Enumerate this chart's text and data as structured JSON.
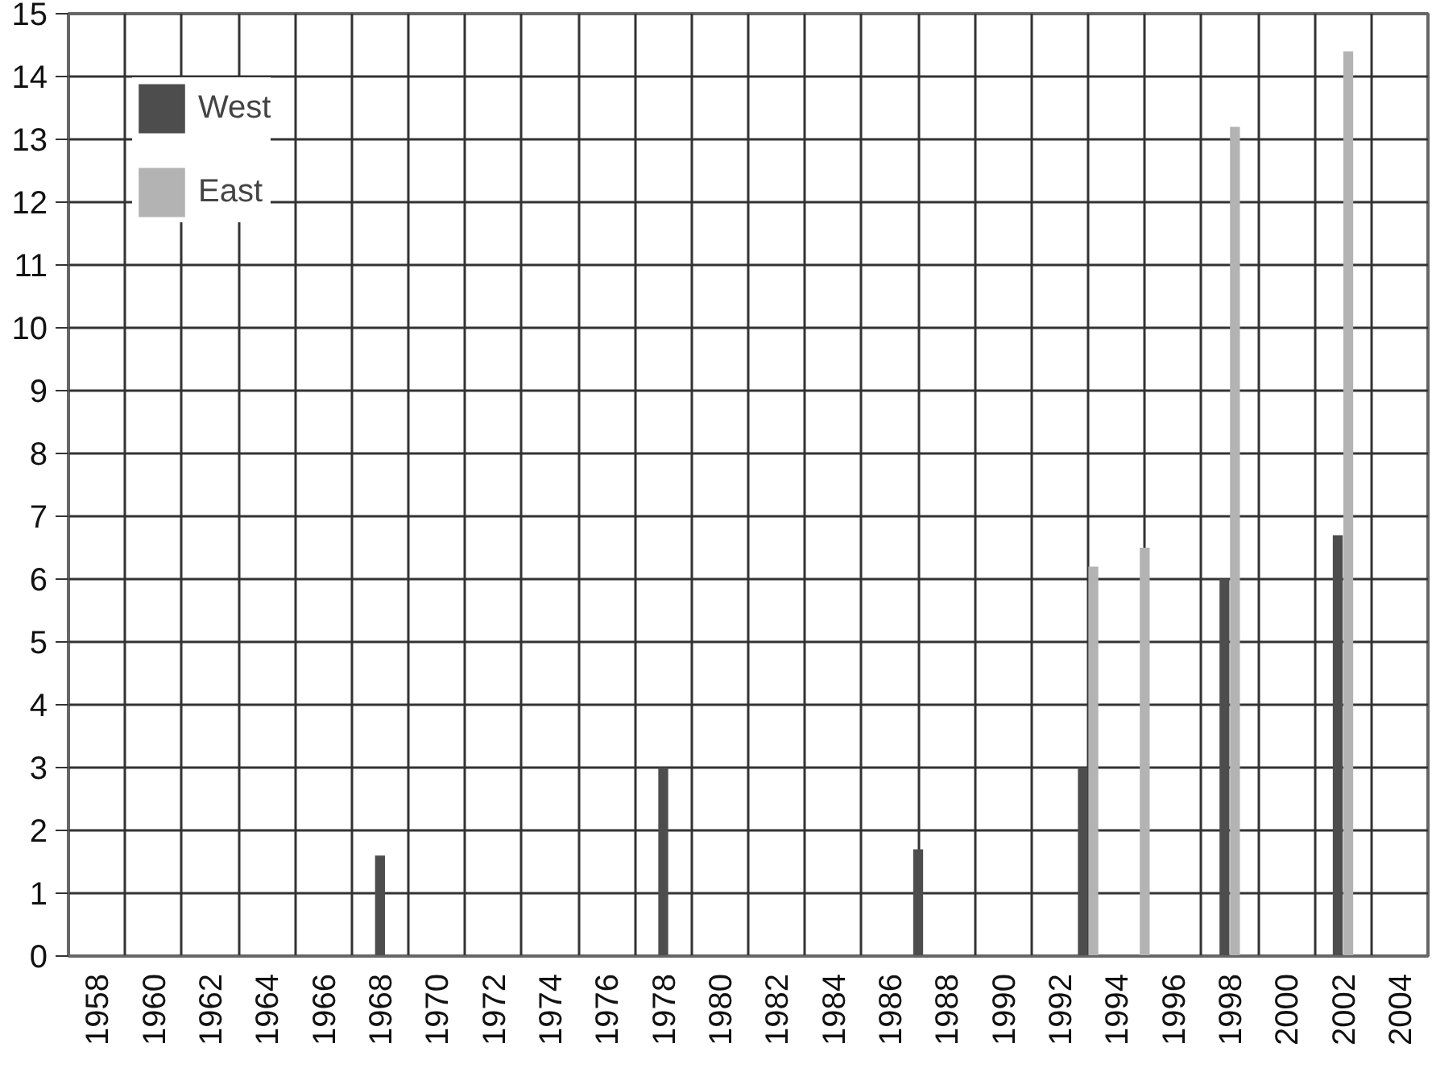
{
  "chart_data": {
    "type": "bar",
    "x": [
      1968,
      1978,
      1987,
      1993,
      1995,
      1998,
      2002
    ],
    "series": [
      {
        "name": "West",
        "color": "#4d4d4d",
        "values": [
          1.6,
          3.0,
          1.7,
          3.0,
          null,
          6.0,
          6.7
        ]
      },
      {
        "name": "East",
        "color": "#b3b3b3",
        "values": [
          null,
          null,
          null,
          6.2,
          6.5,
          13.2,
          14.4
        ]
      }
    ],
    "xlim": [
      1957,
      2005
    ],
    "xticks": [
      {
        "value": 1957,
        "label": null
      },
      1958,
      {
        "value": 1959,
        "label": null
      },
      1960,
      {
        "value": 1961,
        "label": null
      },
      1962,
      {
        "value": 1963,
        "label": null
      },
      1964,
      {
        "value": 1965,
        "label": null
      },
      1966,
      {
        "value": 1967,
        "label": null
      },
      1968,
      {
        "value": 1969,
        "label": null
      },
      1970,
      {
        "value": 1971,
        "label": null
      },
      1972,
      {
        "value": 1973,
        "label": null
      },
      1974,
      {
        "value": 1975,
        "label": null
      },
      1976,
      {
        "value": 1977,
        "label": null
      },
      1978,
      {
        "value": 1979,
        "label": null
      },
      1980,
      {
        "value": 1981,
        "label": null
      },
      1982,
      {
        "value": 1983,
        "label": null
      },
      1984,
      {
        "value": 1985,
        "label": null
      },
      1986,
      {
        "value": 1987,
        "label": null
      },
      1988,
      {
        "value": 1989,
        "label": null
      },
      1990,
      {
        "value": 1991,
        "label": null
      },
      1992,
      {
        "value": 1993,
        "label": null
      },
      1994,
      {
        "value": 1995,
        "label": null
      },
      1996,
      {
        "value": 1997,
        "label": null
      },
      1998,
      {
        "value": 1999,
        "label": null
      },
      2000,
      {
        "value": 2001,
        "label": null
      },
      2002,
      {
        "value": 2003,
        "label": null
      },
      2004,
      {
        "value": 2005,
        "label": null
      }
    ],
    "ylim": [
      0,
      15
    ],
    "yticks": [
      0,
      1,
      2,
      3,
      4,
      5,
      6,
      7,
      8,
      9,
      10,
      11,
      12,
      13,
      14,
      15
    ],
    "grid": true,
    "legend": "top left"
  }
}
